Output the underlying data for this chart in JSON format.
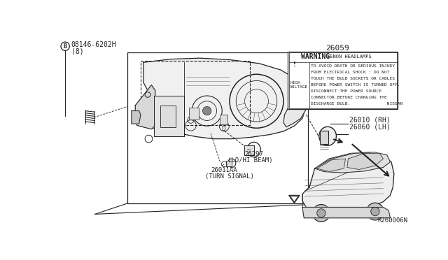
{
  "background_color": "#ffffff",
  "fig_width": 6.4,
  "fig_height": 3.72,
  "dpi": 100,
  "line_color": "#222222",
  "diagram_color": "#222222",
  "labels": {
    "bolt_part": "08146-6202H",
    "bolt_qty": "(8)",
    "p26059": "26059",
    "p26010": "26010 (RH)",
    "p26060": "26060 (LH)",
    "p26297_num": "26297",
    "p26297_txt": "(LO/HI BEAM)",
    "p26011_num": "26011AA",
    "p26011_txt": "(TURN SIGNAL)",
    "ref": "R260006N"
  },
  "warn_title1": "⚠ WARNING",
  "warn_title2": "XENON HEADLAMPS",
  "warn_lines": [
    "TO AVOID DEATH OR SERIOUS INJURY",
    "FROM ELECTRICAL SHOCK : DO NOT",
    "TOUCH THE BULB SOCKETS OR CABLES",
    "BEFORE POWER SWITCH IS TURNED OFF.",
    "DISCONNECT THE POWER SOURCE",
    "CONNECTOR BEFORE CHANGING THE",
    "DISCHARGE BULB.              NISSAN"
  ],
  "warn_left": "HIGH\nVOLTAGE"
}
